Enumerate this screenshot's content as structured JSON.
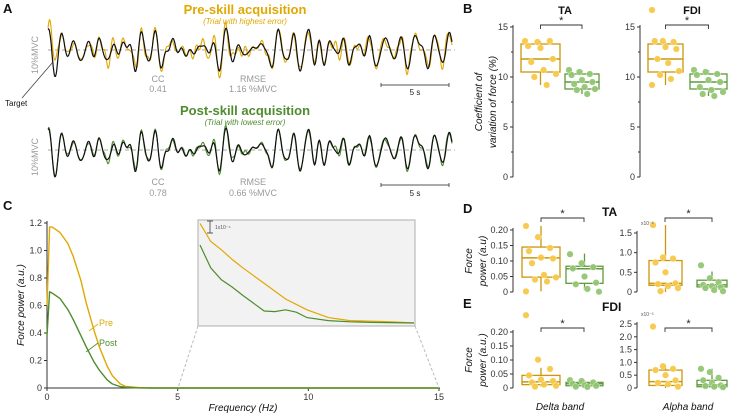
{
  "colors": {
    "pre": "#e0a800",
    "pre_box": "#c9960c",
    "pre_dot": "#f7c948",
    "post": "#4e8c2e",
    "post_box": "#5f9a3c",
    "post_dot": "#93c672",
    "target": "#111111",
    "inset_bg": "#f2f2f2"
  },
  "panel_labels": {
    "A": "A",
    "B": "B",
    "C": "C",
    "D": "D",
    "E": "E"
  },
  "chart_data": [
    {
      "id": "A",
      "type": "line",
      "pre": {
        "title": "Pre-skill acquisition",
        "subtitle": "(Trial with highest error)",
        "cc_label": "CC",
        "cc": "0.41",
        "rmse_label": "RMSE",
        "rmse": "1.16 %MVC"
      },
      "post": {
        "title": "Post-skill acquisition",
        "subtitle": "(Trial with lowest error)",
        "cc_label": "CC",
        "cc": "0.78",
        "rmse_label": "RMSE",
        "rmse": "0.66 %MVC"
      },
      "ylabel": "10%MVC",
      "scale_bar": "5 s",
      "target_label": "Target"
    },
    {
      "id": "B",
      "type": "box",
      "ylabel_line1": "Coefficient of",
      "ylabel_line2": "variation of force (%)",
      "ylim": [
        0,
        15
      ],
      "yticks": [
        "0",
        "5",
        "10",
        "15"
      ],
      "significance": "*",
      "groups": [
        {
          "title": "TA",
          "pre": {
            "q1": 10.5,
            "median": 11.8,
            "q3": 13.3,
            "whisker": [
              9.2,
              13.6
            ],
            "points": [
              13.6,
              13.5,
              13.6,
              13.1,
              12.9,
              11.8,
              11.5,
              10.7,
              10.3,
              10.0,
              9.2
            ]
          },
          "post": {
            "q1": 8.8,
            "median": 9.5,
            "q3": 10.3,
            "whisker": [
              8.3,
              10.7
            ],
            "points": [
              10.7,
              10.5,
              10.3,
              10.2,
              9.7,
              9.5,
              9.3,
              9.0,
              8.8,
              8.7,
              8.3
            ]
          }
        },
        {
          "title": "FDI",
          "pre": {
            "q1": 10.5,
            "median": 11.8,
            "q3": 13.3,
            "whisker": [
              9.2,
              13.6
            ],
            "points": [
              16.7,
              13.6,
              13.5,
              13.6,
              13.0,
              12.8,
              11.8,
              11.4,
              10.6,
              10.2,
              9.8,
              9.2
            ]
          },
          "post": {
            "q1": 8.8,
            "median": 9.5,
            "q3": 10.3,
            "whisker": [
              8.1,
              10.7
            ],
            "points": [
              10.7,
              10.5,
              10.3,
              10.2,
              9.7,
              9.5,
              9.0,
              8.7,
              8.5,
              8.3,
              8.1
            ]
          }
        }
      ]
    },
    {
      "id": "C",
      "type": "line",
      "xlabel": "Frequency (Hz)",
      "ylabel": "Force power (a.u.)",
      "xlim": [
        0,
        15
      ],
      "ylim": [
        0,
        1.2
      ],
      "xticks": [
        "0",
        "5",
        "10",
        "15"
      ],
      "yticks": [
        "0",
        "0.2",
        "0.4",
        "0.6",
        "0.8",
        "1.0",
        "1.2"
      ],
      "series": [
        {
          "name": "Pre",
          "x": [
            0,
            0.1,
            0.2,
            0.5,
            0.8,
            1.0,
            1.3,
            1.5,
            1.8,
            2.0,
            2.3,
            2.5,
            2.8,
            3.0,
            3.5,
            4.0,
            15
          ],
          "y": [
            0.6,
            1.17,
            1.17,
            1.13,
            1.05,
            0.96,
            0.78,
            0.62,
            0.42,
            0.3,
            0.16,
            0.09,
            0.03,
            0.012,
            0.003,
            0,
            0
          ]
        },
        {
          "name": "Post",
          "x": [
            0,
            0.1,
            0.2,
            0.5,
            0.8,
            1.0,
            1.3,
            1.5,
            1.8,
            2.0,
            2.3,
            2.5,
            2.8,
            3.0,
            3.5,
            4.0,
            15
          ],
          "y": [
            0.38,
            0.7,
            0.69,
            0.65,
            0.57,
            0.5,
            0.38,
            0.3,
            0.19,
            0.13,
            0.06,
            0.03,
            0.01,
            0.005,
            0.001,
            0,
            0
          ]
        }
      ],
      "inset": {
        "xlim": [
          5,
          15
        ],
        "scale_label": "1x10⁻⁴",
        "units": "1e-4 above baseline",
        "pre": {
          "x": [
            5,
            5.5,
            6,
            6.5,
            7,
            8,
            9,
            10,
            11,
            12,
            13,
            14,
            15
          ],
          "y": [
            8.3,
            6.8,
            6.1,
            5.3,
            4.6,
            3.3,
            2.0,
            1.1,
            0.45,
            0.2,
            0.15,
            0.1,
            0
          ]
        },
        "post": {
          "x": [
            5,
            5.5,
            6,
            6.5,
            7,
            8,
            8.5,
            9,
            9.5,
            10,
            11,
            12,
            13,
            15
          ],
          "y": [
            6.5,
            4.6,
            3.6,
            3.0,
            2.3,
            1.0,
            0.95,
            1.1,
            0.9,
            0.45,
            0.2,
            0.1,
            0.05,
            0
          ]
        }
      }
    },
    {
      "id": "D",
      "type": "box",
      "ylabel_line1": "Force",
      "ylabel_line2": "power (a.u)",
      "significance": "*",
      "muscle": "TA",
      "delta": {
        "ylim": [
          0,
          0.2
        ],
        "yticks": [
          "0",
          "0.05",
          "0.10",
          "0.15",
          "0.20"
        ],
        "pre": {
          "q1": 0.048,
          "median": 0.11,
          "q3": 0.145,
          "whisker": [
            0.002,
            0.213
          ],
          "points": [
            0.213,
            0.177,
            0.142,
            0.132,
            0.111,
            0.108,
            0.093,
            0.055,
            0.047,
            0.04,
            0.034,
            0.002
          ]
        },
        "post": {
          "q1": 0.028,
          "median": 0.075,
          "q3": 0.083,
          "whisker": [
            0.005,
            0.124
          ],
          "points": [
            0.122,
            0.093,
            0.08,
            0.076,
            0.05,
            0.03,
            0.025,
            0.01,
            0.001
          ]
        }
      },
      "alpha": {
        "ylim": [
          0,
          1.5
        ],
        "multiplier": "x10⁻³",
        "yticks": [
          "0",
          "0.5",
          "1.0",
          "1.5"
        ],
        "pre": {
          "q1": 0.17,
          "median": 0.22,
          "q3": 0.8,
          "whisker": [
            0.0,
            1.7
          ],
          "points": [
            1.7,
            0.88,
            0.85,
            0.75,
            0.5,
            0.22,
            0.2,
            0.15,
            0.1,
            0.02
          ]
        },
        "post": {
          "q1": 0.13,
          "median": 0.18,
          "q3": 0.3,
          "whisker": [
            0.0,
            0.52
          ],
          "points": [
            0.68,
            0.35,
            0.25,
            0.18,
            0.15,
            0.12,
            0.1,
            0.05,
            0.02
          ]
        }
      }
    },
    {
      "id": "E",
      "type": "box",
      "ylabel_line1": "Force",
      "ylabel_line2": "power (a.u.)",
      "significance": "*",
      "muscle": "FDI",
      "delta": {
        "ylim": [
          0,
          0.2
        ],
        "yticks": [
          "0",
          "0.05",
          "0.10",
          "0.15",
          "0.20"
        ],
        "pre": {
          "q1": 0.012,
          "median": 0.022,
          "q3": 0.045,
          "whisker": [
            0.005,
            0.072
          ],
          "points": [
            0.26,
            0.101,
            0.068,
            0.045,
            0.03,
            0.025,
            0.02,
            0.012,
            0.008,
            0.005
          ]
        },
        "post": {
          "q1": 0.008,
          "median": 0.015,
          "q3": 0.02,
          "whisker": [
            0.005,
            0.028
          ],
          "points": [
            0.028,
            0.025,
            0.02,
            0.015,
            0.01,
            0.008,
            0.005,
            0.004
          ]
        }
      },
      "alpha": {
        "ylim": [
          0,
          2.5
        ],
        "multiplier": "x10⁻³",
        "yticks": [
          "0",
          "0.5",
          "1.0",
          "1.5",
          "2.0",
          "2.5"
        ],
        "pre": {
          "q1": 0.1,
          "median": 0.25,
          "q3": 0.7,
          "whisker": [
            0.0,
            0.9
          ],
          "points": [
            2.4,
            0.85,
            0.75,
            0.7,
            0.5,
            0.3,
            0.2,
            0.15,
            0.05
          ]
        },
        "post": {
          "q1": 0.05,
          "median": 0.12,
          "q3": 0.3,
          "whisker": [
            0.0,
            0.75
          ],
          "points": [
            0.75,
            0.62,
            0.4,
            0.3,
            0.2,
            0.1,
            0.08,
            0.05,
            0.03
          ]
        }
      },
      "xlabel_delta": "Delta band",
      "xlabel_alpha": "Alpha band"
    }
  ]
}
